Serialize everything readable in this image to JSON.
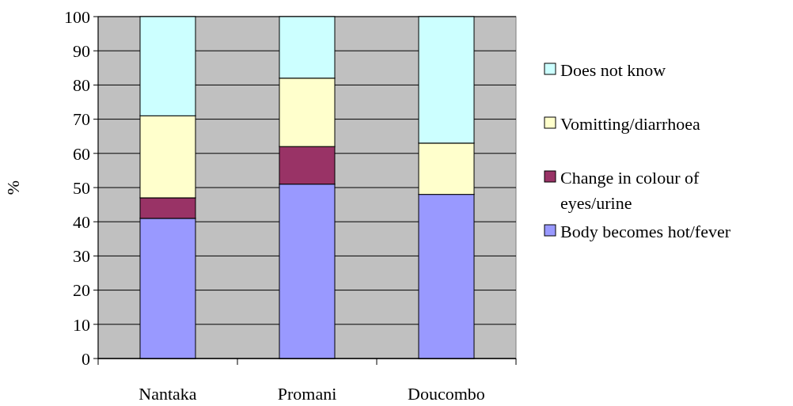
{
  "chart_data": {
    "type": "bar",
    "stacked": true,
    "ylabel": "%",
    "categories": [
      "Nantaka",
      "Promani",
      "Doucombo"
    ],
    "series": [
      {
        "name": "Body becomes hot/fever",
        "color": "#9999ff",
        "values": [
          41,
          51,
          48
        ]
      },
      {
        "name": "Change in colour of eyes/urine",
        "color": "#993366",
        "values": [
          6,
          11,
          0
        ]
      },
      {
        "name": "Vomitting/diarrhoea",
        "color": "#ffffcc",
        "values": [
          24,
          20,
          15
        ]
      },
      {
        "name": "Does not know",
        "color": "#ccffff",
        "values": [
          29,
          18,
          37
        ]
      }
    ],
    "ylim": [
      0,
      100
    ],
    "yticks": [
      0,
      10,
      20,
      30,
      40,
      50,
      60,
      70,
      80,
      90,
      100
    ],
    "grid": "y",
    "legend": "right"
  }
}
